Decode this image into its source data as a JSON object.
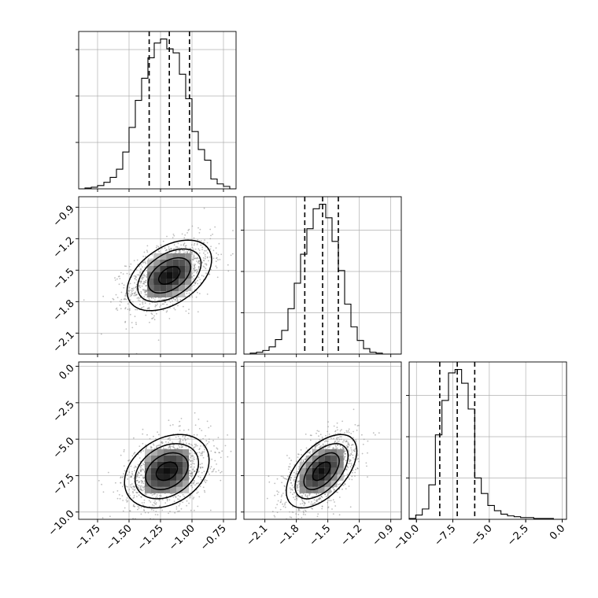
{
  "chart_data": {
    "type": "corner",
    "params": [
      "",
      "",
      ""
    ],
    "quantiles_note": "dashed lines mark quantiles",
    "grid": true,
    "histograms": [
      {
        "param_index": 0,
        "xlim": [
          -1.9,
          -0.65
        ],
        "quantiles": [
          -1.34,
          -1.18,
          -1.02
        ],
        "bins": [
          -1.9,
          -1.85,
          -1.8,
          -1.75,
          -1.7,
          -1.65,
          -1.6,
          -1.55,
          -1.5,
          -1.45,
          -1.4,
          -1.35,
          -1.3,
          -1.25,
          -1.2,
          -1.15,
          -1.1,
          -1.05,
          -1.0,
          -0.95,
          -0.9,
          -0.85,
          -0.8,
          -0.75,
          -0.7,
          -0.65
        ],
        "counts": [
          0,
          1,
          2,
          4,
          8,
          14,
          24,
          45,
          75,
          108,
          135,
          160,
          178,
          183,
          171,
          166,
          140,
          110,
          70,
          48,
          35,
          12,
          6,
          3,
          0
        ]
      },
      {
        "param_index": 1,
        "xlim": [
          -2.3,
          -0.8
        ],
        "quantiles": [
          -1.72,
          -1.55,
          -1.4
        ],
        "bins": [
          -2.3,
          -2.24,
          -2.18,
          -2.12,
          -2.06,
          -2.0,
          -1.94,
          -1.88,
          -1.82,
          -1.76,
          -1.7,
          -1.64,
          -1.58,
          -1.52,
          -1.46,
          -1.4,
          -1.34,
          -1.28,
          -1.22,
          -1.16,
          -1.1,
          -1.04,
          -0.98,
          -0.92,
          -0.86,
          -0.8
        ],
        "counts": [
          0,
          1,
          2,
          4,
          8,
          16,
          26,
          50,
          78,
          110,
          138,
          160,
          165,
          150,
          124,
          92,
          55,
          30,
          15,
          6,
          2,
          1,
          0,
          0,
          0
        ]
      },
      {
        "param_index": 2,
        "xlim": [
          -10.5,
          0.3
        ],
        "quantiles": [
          -8.4,
          -7.2,
          -6.0
        ],
        "bins": [
          -10.5,
          -10.05,
          -9.6,
          -9.15,
          -8.7,
          -8.25,
          -7.8,
          -7.35,
          -6.9,
          -6.45,
          -6.0,
          -5.55,
          -5.1,
          -4.65,
          -4.2,
          -3.75,
          -3.3,
          -2.85,
          -2.4,
          -1.95,
          -1.5,
          -1.05,
          -0.6,
          -0.15,
          0.3
        ],
        "counts": [
          1,
          5,
          12,
          40,
          98,
          138,
          170,
          174,
          158,
          128,
          48,
          30,
          16,
          10,
          6,
          4,
          3,
          2,
          2,
          1,
          1,
          1,
          0,
          0
        ]
      }
    ],
    "scatter_panels": [
      {
        "x_param": 0,
        "y_param": 1,
        "xlim": [
          -1.9,
          -0.65
        ],
        "ylim": [
          -2.3,
          -0.8
        ],
        "mean": [
          -1.18,
          -1.55
        ],
        "sd": [
          0.16,
          0.16
        ],
        "corr": 0.45,
        "contour_levels_sigma": [
          0.5,
          1.0,
          1.5,
          2.0
        ]
      },
      {
        "x_param": 0,
        "y_param": 2,
        "xlim": [
          -1.9,
          -0.65
        ],
        "ylim": [
          -10.5,
          0.3
        ],
        "mean": [
          -1.2,
          -7.2
        ],
        "sd": [
          0.16,
          1.2
        ],
        "corr": 0.3,
        "contour_levels_sigma": [
          0.5,
          1.0,
          1.5,
          2.0
        ]
      },
      {
        "x_param": 1,
        "y_param": 2,
        "xlim": [
          -2.3,
          -0.8
        ],
        "ylim": [
          -10.5,
          0.3
        ],
        "mean": [
          -1.56,
          -7.2
        ],
        "sd": [
          0.16,
          1.2
        ],
        "corr": 0.55,
        "contour_levels_sigma": [
          0.5,
          1.0,
          1.5,
          2.0
        ]
      }
    ],
    "ticks": {
      "p0": {
        "values": [
          -1.75,
          -1.5,
          -1.25,
          -1.0,
          -0.75
        ],
        "labels": [
          "−1.75",
          "−1.50",
          "−1.25",
          "−1.00",
          "−0.75"
        ]
      },
      "p1": {
        "values": [
          -2.1,
          -1.8,
          -1.5,
          -1.2,
          -0.9
        ],
        "labels": [
          "−2.1",
          "−1.8",
          "−1.5",
          "−1.2",
          "−0.9"
        ]
      },
      "p2": {
        "values": [
          -10.0,
          -7.5,
          -5.0,
          -2.5,
          0.0
        ],
        "labels": [
          "−10.0",
          "−7.5",
          "−5.0",
          "−2.5",
          "0.0"
        ]
      }
    }
  }
}
